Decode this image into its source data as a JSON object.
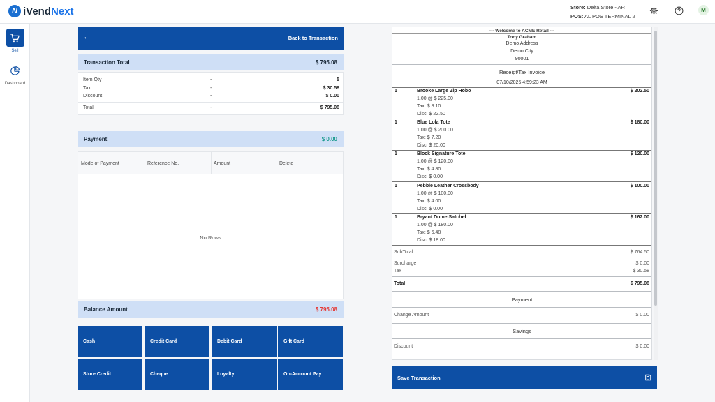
{
  "app": {
    "logo_mark": "N",
    "logo_prefix": "iVend",
    "logo_suffix": "Next"
  },
  "header": {
    "store_label": "Store:",
    "store_value": "Delta Store - AR",
    "pos_label": "POS:",
    "pos_value": "AL POS TERMINAL 2",
    "avatar_initial": "M",
    "icons": [
      "gear-icon",
      "help-icon"
    ]
  },
  "sidebar": {
    "items": [
      {
        "label": "Sell",
        "icon": "cart-icon",
        "active": true
      },
      {
        "label": "Dashboard",
        "icon": "pie-chart-icon",
        "active": false
      }
    ]
  },
  "back": {
    "label": "Back to Transaction"
  },
  "transaction": {
    "label": "Transaction Total",
    "value": "$ 795.08",
    "rows": [
      {
        "label": "Item Qty",
        "dash": "-",
        "value": "5"
      },
      {
        "label": "Tax",
        "dash": "-",
        "value": "$ 30.58"
      },
      {
        "label": "Discount",
        "dash": "-",
        "value": "$ 0.00"
      }
    ],
    "total": {
      "label": "Total",
      "dash": "-",
      "value": "$ 795.08"
    }
  },
  "payment": {
    "label": "Payment",
    "value": "$ 0.00",
    "value_color": "#1a9a8e",
    "columns": [
      "Mode of Payment",
      "Reference No.",
      "Amount",
      "Delete"
    ],
    "empty_text": "No Rows"
  },
  "balance": {
    "label": "Balance Amount",
    "value": "$ 795.08",
    "value_color": "#e53935"
  },
  "tenders": [
    "Cash",
    "Credit Card",
    "Debit Card",
    "Gift Card",
    "Store Credit",
    "Cheque",
    "Loyalty",
    "On-Account Pay"
  ],
  "receipt": {
    "welcome": "--- Welcome to ACME Retail ---",
    "customer": "Tony Graham",
    "address": "Demo Address",
    "city": "Demo City",
    "zip": "90001",
    "title": "Receipt/Tax Invoice",
    "datetime": "07/10/2025 4:59:23 AM",
    "items": [
      {
        "qty": "1",
        "name": "Brooke Large Zip Hobo",
        "amount": "$ 202.50",
        "price_line": "1.00 @ $ 225.00",
        "tax_line": "Tax: $ 8.10",
        "disc_line": "Disc: $ 22.50"
      },
      {
        "qty": "1",
        "name": "Blue Lola Tote",
        "amount": "$ 180.00",
        "price_line": "1.00 @ $ 200.00",
        "tax_line": "Tax: $ 7.20",
        "disc_line": "Disc: $ 20.00"
      },
      {
        "qty": "1",
        "name": "Block Signature Tote",
        "amount": "$ 120.00",
        "price_line": "1.00 @ $ 120.00",
        "tax_line": "Tax: $ 4.80",
        "disc_line": "Disc: $ 0.00"
      },
      {
        "qty": "1",
        "name": "Pebble Leather Crossbody",
        "amount": "$ 100.00",
        "price_line": "1.00 @ $ 100.00",
        "tax_line": "Tax: $ 4.00",
        "disc_line": "Disc: $ 0.00"
      },
      {
        "qty": "1",
        "name": "Bryant Dome Satchel",
        "amount": "$ 162.00",
        "price_line": "1.00 @ $ 180.00",
        "tax_line": "Tax: $ 6.48",
        "disc_line": "Disc: $ 18.00"
      }
    ],
    "subtotal": {
      "label": "SubTotal",
      "value": "$ 764.50"
    },
    "surcharge": {
      "label": "Surcharge",
      "value": "$ 0.00"
    },
    "tax": {
      "label": "Tax",
      "value": "$ 30.58"
    },
    "total": {
      "label": "Total",
      "value": "$ 795.08"
    },
    "payment_title": "Payment",
    "change": {
      "label": "Change Amount",
      "value": "$ 0.00"
    },
    "savings_title": "Savings",
    "discount": {
      "label": "Discount",
      "value": "$ 0.00"
    }
  },
  "save": {
    "label": "Save Transaction",
    "icon": "save-icon"
  }
}
